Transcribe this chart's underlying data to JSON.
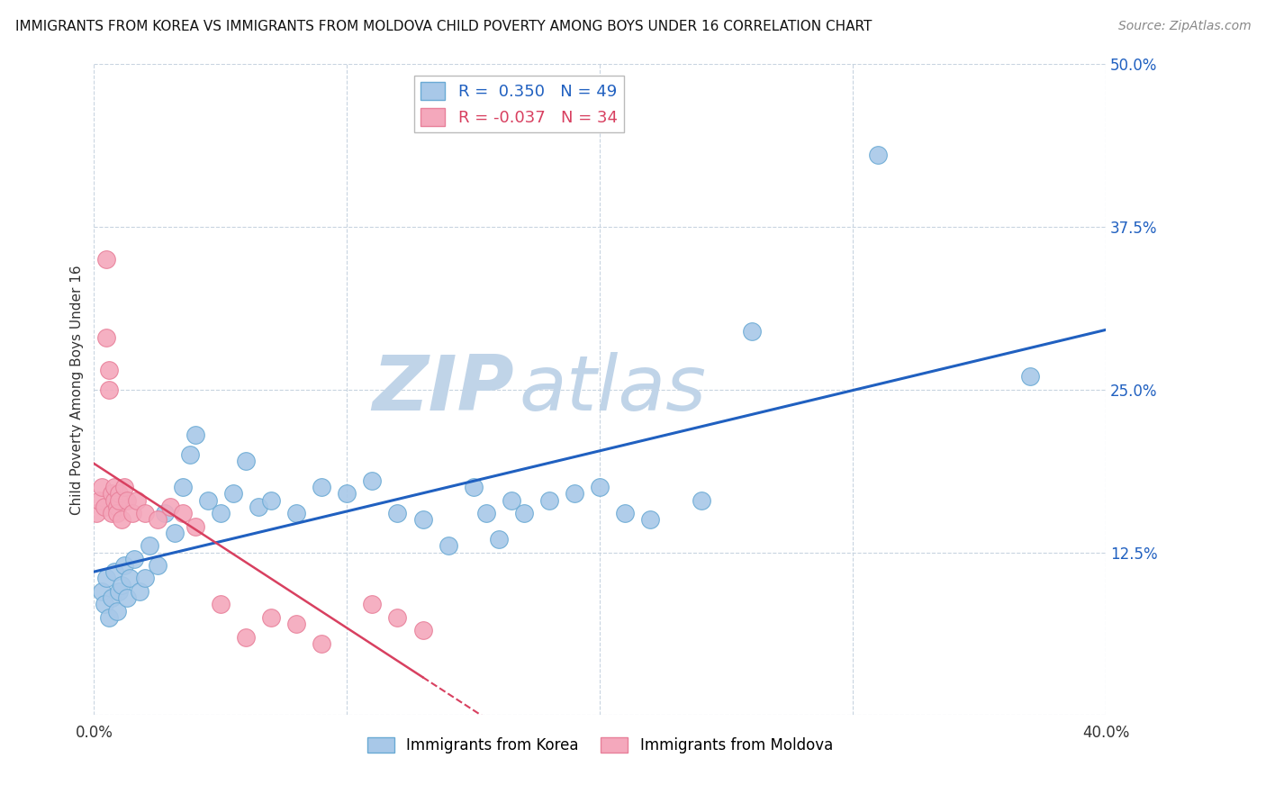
{
  "title": "IMMIGRANTS FROM KOREA VS IMMIGRANTS FROM MOLDOVA CHILD POVERTY AMONG BOYS UNDER 16 CORRELATION CHART",
  "source": "Source: ZipAtlas.com",
  "ylabel": "Child Poverty Among Boys Under 16",
  "xlabel_korea": "Immigrants from Korea",
  "xlabel_moldova": "Immigrants from Moldova",
  "xlim": [
    0.0,
    0.4
  ],
  "ylim": [
    0.0,
    0.5
  ],
  "xticks": [
    0.0,
    0.1,
    0.2,
    0.3,
    0.4
  ],
  "xticklabels": [
    "0.0%",
    "",
    "",
    "",
    "40.0%"
  ],
  "yticks_right": [
    0.0,
    0.125,
    0.25,
    0.375,
    0.5
  ],
  "yticklabels_right": [
    "",
    "12.5%",
    "25.0%",
    "37.5%",
    "50.0%"
  ],
  "R_korea": 0.35,
  "N_korea": 49,
  "R_moldova": -0.037,
  "N_moldova": 34,
  "korea_color": "#a8c8e8",
  "moldova_color": "#f4a8bc",
  "korea_edge": "#6aaad4",
  "moldova_edge": "#e8809a",
  "line_korea_color": "#2060c0",
  "line_moldova_color": "#d84060",
  "watermark_color": "#c0d4e8",
  "background_color": "#ffffff",
  "grid_color": "#c8d4e0",
  "korea_x": [
    0.003,
    0.004,
    0.005,
    0.006,
    0.007,
    0.008,
    0.009,
    0.01,
    0.011,
    0.012,
    0.013,
    0.014,
    0.016,
    0.018,
    0.02,
    0.022,
    0.025,
    0.028,
    0.032,
    0.035,
    0.038,
    0.04,
    0.045,
    0.05,
    0.055,
    0.06,
    0.065,
    0.07,
    0.08,
    0.09,
    0.1,
    0.11,
    0.12,
    0.13,
    0.14,
    0.15,
    0.155,
    0.16,
    0.165,
    0.17,
    0.18,
    0.19,
    0.2,
    0.21,
    0.22,
    0.24,
    0.26,
    0.31,
    0.37
  ],
  "korea_y": [
    0.095,
    0.085,
    0.105,
    0.075,
    0.09,
    0.11,
    0.08,
    0.095,
    0.1,
    0.115,
    0.09,
    0.105,
    0.12,
    0.095,
    0.105,
    0.13,
    0.115,
    0.155,
    0.14,
    0.175,
    0.2,
    0.215,
    0.165,
    0.155,
    0.17,
    0.195,
    0.16,
    0.165,
    0.155,
    0.175,
    0.17,
    0.18,
    0.155,
    0.15,
    0.13,
    0.175,
    0.155,
    0.135,
    0.165,
    0.155,
    0.165,
    0.17,
    0.175,
    0.155,
    0.15,
    0.165,
    0.295,
    0.43,
    0.26
  ],
  "moldova_x": [
    0.001,
    0.002,
    0.003,
    0.004,
    0.005,
    0.005,
    0.006,
    0.006,
    0.007,
    0.007,
    0.008,
    0.008,
    0.009,
    0.009,
    0.01,
    0.01,
    0.011,
    0.012,
    0.013,
    0.015,
    0.017,
    0.02,
    0.025,
    0.03,
    0.035,
    0.04,
    0.05,
    0.06,
    0.07,
    0.08,
    0.09,
    0.11,
    0.12,
    0.13
  ],
  "moldova_y": [
    0.155,
    0.165,
    0.175,
    0.16,
    0.35,
    0.29,
    0.265,
    0.25,
    0.155,
    0.17,
    0.165,
    0.175,
    0.16,
    0.155,
    0.17,
    0.165,
    0.15,
    0.175,
    0.165,
    0.155,
    0.165,
    0.155,
    0.15,
    0.16,
    0.155,
    0.145,
    0.085,
    0.06,
    0.075,
    0.07,
    0.055,
    0.085,
    0.075,
    0.065
  ]
}
